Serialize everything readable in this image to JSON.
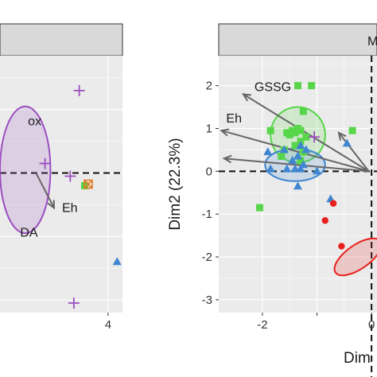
{
  "colors": {
    "panel_bg": "#ebebeb",
    "grid": "#ffffff",
    "strip_bg": "#d9d9d9",
    "arrow": "#666666",
    "purple": "#9b4fc0",
    "green": "#58d64a",
    "blue": "#3f86d1",
    "red": "#e8201c",
    "orange": "#e07a1f"
  },
  "chart_data": [
    {
      "type": "scatter",
      "title": "",
      "strip_label": "",
      "xlabel": "",
      "ylabel": "",
      "xlim": [
        -2.0,
        4.8
      ],
      "ylim": [
        -4.4,
        3.7
      ],
      "x_ticks": [
        4
      ],
      "x_tick_labels": [
        "4"
      ],
      "grid": true,
      "reference_lines": {
        "x0": false,
        "y0": true
      },
      "series": [
        {
          "color": "purple",
          "marker": "plus",
          "x": [
            2.4,
            0.5,
            1.9,
            2.1
          ],
          "y": [
            2.6,
            0.3,
            -0.1,
            -4.1
          ]
        },
        {
          "color": "green",
          "marker": "square",
          "x": [
            2.7
          ],
          "y": [
            -0.4
          ]
        },
        {
          "color": "orange",
          "marker": "square-x",
          "x": [
            2.9
          ],
          "y": [
            -0.35
          ]
        },
        {
          "color": "blue",
          "marker": "triangle",
          "x": [
            4.5
          ],
          "y": [
            -2.8
          ]
        }
      ],
      "ellipses": [
        {
          "color": "purple",
          "cx": -0.6,
          "cy": 0.1,
          "rx": 1.4,
          "ry": 2.0
        }
      ],
      "vectors": [
        {
          "label": "Eh",
          "x": 1.0,
          "y": -1.1
        }
      ],
      "labels": [
        {
          "text": "ox",
          "x": 0.3,
          "y": 1.5
        },
        {
          "text": "DA",
          "x": 0.1,
          "y": -2.0
        }
      ]
    },
    {
      "type": "scatter",
      "title": "",
      "strip_label": "M",
      "xlabel": "Dim",
      "ylabel": "Dim2 (22.3%)",
      "xlim": [
        -2.8,
        0.1
      ],
      "ylim": [
        -3.3,
        2.7
      ],
      "x_ticks": [
        -2,
        -1,
        0
      ],
      "x_tick_labels": [
        "-2",
        "",
        "0"
      ],
      "y_ticks": [
        -3,
        -2,
        -1,
        0,
        1,
        2
      ],
      "y_tick_labels": [
        "-3",
        "-2",
        "-1",
        "0",
        "1",
        "2"
      ],
      "grid": true,
      "reference_lines": {
        "x0": true,
        "y0": true
      },
      "series": [
        {
          "color": "green",
          "marker": "square",
          "x": [
            -1.35,
            -1.1,
            -1.25,
            -1.45,
            -1.4,
            -1.3,
            -1.5,
            -1.2,
            -1.35,
            -1.55,
            -1.6,
            -1.65,
            -1.85,
            -1.3,
            -1.25,
            -0.35,
            -2.05,
            -1.4,
            -1.3
          ],
          "y": [
            2.0,
            2.0,
            1.4,
            0.95,
            0.9,
            0.95,
            0.85,
            0.8,
            1.0,
            0.9,
            0.5,
            0.35,
            0.95,
            0.7,
            0.45,
            0.95,
            -0.85,
            0.6,
            0.25
          ]
        },
        {
          "color": "blue",
          "marker": "triangle",
          "x": [
            -1.9,
            -1.6,
            -1.45,
            -1.35,
            -1.25,
            -1.3,
            -1.4,
            -1.2,
            -1.55,
            -1.0,
            -1.35,
            -0.75,
            -0.45,
            -1.85,
            -1.3
          ],
          "y": [
            0.45,
            0.5,
            0.25,
            0.35,
            0.15,
            0.05,
            0.05,
            0.5,
            0.05,
            0.0,
            -0.35,
            -0.65,
            0.65,
            0.05,
            0.6
          ]
        },
        {
          "color": "red",
          "marker": "circle",
          "x": [
            -0.7,
            -0.85,
            -0.55
          ],
          "y": [
            -0.75,
            -1.15,
            -1.75
          ]
        },
        {
          "color": "purple",
          "marker": "plus",
          "x": [
            -1.05
          ],
          "y": [
            0.8
          ]
        }
      ],
      "ellipses": [
        {
          "color": "green",
          "cx": -1.35,
          "cy": 0.85,
          "rx": 0.5,
          "ry": 0.65,
          "rotate": 10
        },
        {
          "color": "blue",
          "cx": -1.4,
          "cy": 0.15,
          "rx": 0.55,
          "ry": 0.38,
          "rotate": 0
        },
        {
          "color": "red",
          "cx": -0.25,
          "cy": -2.0,
          "rx": 0.5,
          "ry": 0.28,
          "rotate": 35
        }
      ],
      "vectors": [
        {
          "label": "GSSG",
          "x": -2.35,
          "y": 1.8
        },
        {
          "label": "Eh",
          "x": -2.75,
          "y": 0.95
        },
        {
          "label": "",
          "x": -0.6,
          "y": 0.9
        },
        {
          "label": "",
          "x": -2.7,
          "y": 0.3
        }
      ],
      "vector_origin": [
        -0.05,
        0.0
      ]
    }
  ]
}
